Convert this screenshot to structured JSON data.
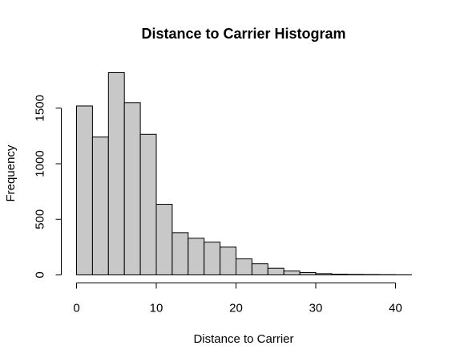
{
  "chart_data": {
    "type": "bar",
    "title": "Distance to Carrier Histogram",
    "xlabel": "Distance to Carrier",
    "ylabel": "Frequency",
    "bins": [
      {
        "start": 0,
        "end": 2,
        "count": 1520
      },
      {
        "start": 2,
        "end": 4,
        "count": 1240
      },
      {
        "start": 4,
        "end": 6,
        "count": 1820
      },
      {
        "start": 6,
        "end": 8,
        "count": 1550
      },
      {
        "start": 8,
        "end": 10,
        "count": 1265
      },
      {
        "start": 10,
        "end": 12,
        "count": 635
      },
      {
        "start": 12,
        "end": 14,
        "count": 380
      },
      {
        "start": 14,
        "end": 16,
        "count": 330
      },
      {
        "start": 16,
        "end": 18,
        "count": 295
      },
      {
        "start": 18,
        "end": 20,
        "count": 250
      },
      {
        "start": 20,
        "end": 22,
        "count": 145
      },
      {
        "start": 22,
        "end": 24,
        "count": 100
      },
      {
        "start": 24,
        "end": 26,
        "count": 60
      },
      {
        "start": 26,
        "end": 28,
        "count": 35
      },
      {
        "start": 28,
        "end": 30,
        "count": 22
      },
      {
        "start": 30,
        "end": 32,
        "count": 12
      },
      {
        "start": 32,
        "end": 34,
        "count": 6
      },
      {
        "start": 34,
        "end": 36,
        "count": 4
      },
      {
        "start": 36,
        "end": 38,
        "count": 3
      },
      {
        "start": 38,
        "end": 40,
        "count": 2
      },
      {
        "start": 40,
        "end": 42,
        "count": 1
      }
    ],
    "xlim": [
      0,
      42
    ],
    "ylim": [
      0,
      1820
    ],
    "xticks": [
      0,
      10,
      20,
      30,
      40
    ],
    "xtick_labels": [
      "0",
      "10",
      "20",
      "30",
      "40"
    ],
    "yticks": [
      0,
      500,
      1000,
      1500
    ],
    "ytick_labels": [
      "0",
      "500",
      "1000",
      "1500"
    ],
    "bar_fill": "#c8c8c8",
    "bar_stroke": "#000000",
    "grid": false
  }
}
